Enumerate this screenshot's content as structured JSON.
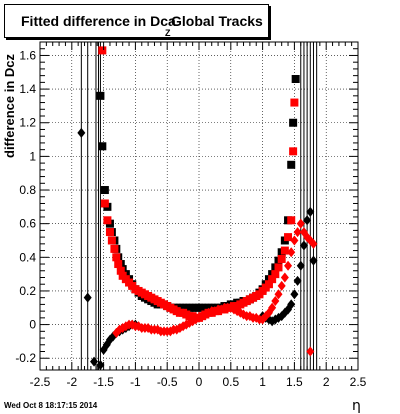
{
  "title": {
    "main": "Fitted difference in Dca",
    "subscript": "Z",
    "suffix": "Global Tracks"
  },
  "timestamp": "Wed Oct  8 18:17:15 2014",
  "chart_data": {
    "type": "scatter",
    "xlabel": "η",
    "ylabel": "difference in Dcz",
    "xlim": [
      -2.5,
      2.5
    ],
    "ylim": [
      -0.27,
      1.68
    ],
    "x_ticks": [
      -2.5,
      -2,
      -1.5,
      -1,
      -0.5,
      0,
      0.5,
      1,
      1.5,
      2,
      2.5
    ],
    "y_ticks": [
      -0.2,
      0,
      0.2,
      0.4,
      0.6,
      0.8,
      1,
      1.2,
      1.4,
      1.6
    ],
    "tick_labels_x": [
      "-2.5",
      "-2",
      "-1.5",
      "-1",
      "-0.5",
      "0",
      "0.5",
      "1",
      "1.5",
      "2",
      "2.5"
    ],
    "tick_labels_y": [
      "-0.2",
      "0",
      "0.2",
      "0.4",
      "0.6",
      "0.8",
      "1",
      "1.2",
      "1.4",
      "1.6"
    ],
    "grid": true,
    "series": [
      {
        "color": "#000000",
        "marker": "square",
        "points": [
          [
            -1.55,
            1.36
          ],
          [
            -1.52,
            1.06
          ],
          [
            -1.48,
            0.8
          ],
          [
            -1.44,
            0.7
          ],
          [
            -1.4,
            0.6
          ],
          [
            -1.37,
            0.55
          ],
          [
            -1.33,
            0.5
          ],
          [
            -1.3,
            0.45
          ],
          [
            -1.27,
            0.4
          ],
          [
            -1.23,
            0.36
          ],
          [
            -1.2,
            0.33
          ],
          [
            -1.15,
            0.3
          ],
          [
            -1.1,
            0.27
          ],
          [
            -1.05,
            0.24
          ],
          [
            -1.0,
            0.21
          ],
          [
            -0.95,
            0.19
          ],
          [
            -0.9,
            0.17
          ],
          [
            -0.85,
            0.16
          ],
          [
            -0.8,
            0.15
          ],
          [
            -0.75,
            0.14
          ],
          [
            -0.7,
            0.13
          ],
          [
            -0.65,
            0.12
          ],
          [
            -0.6,
            0.12
          ],
          [
            -0.55,
            0.12
          ],
          [
            -0.5,
            0.11
          ],
          [
            -0.45,
            0.1
          ],
          [
            -0.4,
            0.1
          ],
          [
            -0.35,
            0.1
          ],
          [
            -0.3,
            0.1
          ],
          [
            -0.25,
            0.1
          ],
          [
            -0.2,
            0.1
          ],
          [
            -0.15,
            0.1
          ],
          [
            -0.1,
            0.1
          ],
          [
            -0.05,
            0.1
          ],
          [
            0.0,
            0.1
          ],
          [
            0.05,
            0.1
          ],
          [
            0.1,
            0.1
          ],
          [
            0.15,
            0.1
          ],
          [
            0.2,
            0.1
          ],
          [
            0.25,
            0.1
          ],
          [
            0.3,
            0.1
          ],
          [
            0.35,
            0.1
          ],
          [
            0.4,
            0.11
          ],
          [
            0.45,
            0.11
          ],
          [
            0.5,
            0.12
          ],
          [
            0.55,
            0.12
          ],
          [
            0.6,
            0.13
          ],
          [
            0.65,
            0.13
          ],
          [
            0.7,
            0.14
          ],
          [
            0.75,
            0.14
          ],
          [
            0.8,
            0.15
          ],
          [
            0.85,
            0.16
          ],
          [
            0.9,
            0.17
          ],
          [
            0.95,
            0.19
          ],
          [
            1.0,
            0.21
          ],
          [
            1.05,
            0.24
          ],
          [
            1.1,
            0.27
          ],
          [
            1.15,
            0.3
          ],
          [
            1.2,
            0.34
          ],
          [
            1.25,
            0.38
          ],
          [
            1.3,
            0.43
          ],
          [
            1.35,
            0.5
          ],
          [
            1.4,
            0.62
          ],
          [
            1.45,
            0.95
          ],
          [
            1.48,
            1.2
          ],
          [
            1.52,
            1.46
          ]
        ]
      },
      {
        "color": "#000000",
        "marker": "diamond",
        "points": [
          [
            -1.85,
            1.14
          ],
          [
            -1.75,
            0.16
          ],
          [
            -1.65,
            -0.22
          ],
          [
            -1.55,
            -0.24
          ],
          [
            -1.5,
            -0.15
          ],
          [
            -1.45,
            -0.12
          ],
          [
            -1.4,
            -0.09
          ],
          [
            -1.35,
            -0.07
          ],
          [
            -1.3,
            -0.05
          ],
          [
            -1.25,
            -0.04
          ],
          [
            -1.2,
            -0.03
          ],
          [
            -1.15,
            -0.02
          ],
          [
            -1.1,
            -0.01
          ],
          [
            -1.05,
            0.0
          ],
          [
            -1.0,
            0.0
          ],
          [
            1.0,
            0.05
          ],
          [
            1.05,
            0.04
          ],
          [
            1.1,
            0.03
          ],
          [
            1.15,
            0.02
          ],
          [
            1.2,
            0.03
          ],
          [
            1.25,
            0.04
          ],
          [
            1.3,
            0.05
          ],
          [
            1.35,
            0.07
          ],
          [
            1.4,
            0.09
          ],
          [
            1.45,
            0.12
          ],
          [
            1.5,
            0.18
          ],
          [
            1.55,
            0.26
          ],
          [
            1.6,
            0.35
          ],
          [
            1.65,
            0.47
          ],
          [
            1.7,
            0.62
          ],
          [
            1.75,
            0.67
          ],
          [
            1.8,
            0.38
          ]
        ]
      },
      {
        "color": "#ff0000",
        "marker": "square",
        "points": [
          [
            -1.52,
            1.63
          ],
          [
            -1.48,
            0.72
          ],
          [
            -1.44,
            0.62
          ],
          [
            -1.4,
            0.55
          ],
          [
            -1.37,
            0.5
          ],
          [
            -1.33,
            0.45
          ],
          [
            -1.3,
            0.4
          ],
          [
            -1.27,
            0.36
          ],
          [
            -1.23,
            0.32
          ],
          [
            -1.2,
            0.29
          ],
          [
            -1.15,
            0.27
          ],
          [
            -1.1,
            0.25
          ],
          [
            -1.05,
            0.23
          ],
          [
            -1.0,
            0.21
          ],
          [
            -0.95,
            0.2
          ],
          [
            -0.9,
            0.19
          ],
          [
            -0.85,
            0.18
          ],
          [
            -0.8,
            0.17
          ],
          [
            -0.75,
            0.16
          ],
          [
            -0.7,
            0.15
          ],
          [
            -0.65,
            0.14
          ],
          [
            -0.6,
            0.13
          ],
          [
            -0.55,
            0.12
          ],
          [
            -0.5,
            0.11
          ],
          [
            -0.45,
            0.1
          ],
          [
            -0.4,
            0.09
          ],
          [
            -0.35,
            0.08
          ],
          [
            -0.3,
            0.07
          ],
          [
            -0.25,
            0.07
          ],
          [
            -0.2,
            0.06
          ],
          [
            -0.15,
            0.05
          ],
          [
            -0.1,
            0.05
          ],
          [
            -0.05,
            0.04
          ],
          [
            0.0,
            0.04
          ],
          [
            0.05,
            0.05
          ],
          [
            0.1,
            0.06
          ],
          [
            0.15,
            0.07
          ],
          [
            0.2,
            0.07
          ],
          [
            0.25,
            0.08
          ],
          [
            0.3,
            0.08
          ],
          [
            0.35,
            0.09
          ],
          [
            0.4,
            0.09
          ],
          [
            0.45,
            0.1
          ],
          [
            0.5,
            0.1
          ],
          [
            0.55,
            0.11
          ],
          [
            0.6,
            0.11
          ],
          [
            0.65,
            0.12
          ],
          [
            0.7,
            0.13
          ],
          [
            0.75,
            0.14
          ],
          [
            0.8,
            0.15
          ],
          [
            0.85,
            0.16
          ],
          [
            0.9,
            0.17
          ],
          [
            0.95,
            0.18
          ],
          [
            1.0,
            0.2
          ],
          [
            1.05,
            0.22
          ],
          [
            1.1,
            0.24
          ],
          [
            1.15,
            0.27
          ],
          [
            1.2,
            0.3
          ],
          [
            1.25,
            0.34
          ],
          [
            1.3,
            0.39
          ],
          [
            1.35,
            0.44
          ],
          [
            1.4,
            0.52
          ],
          [
            1.45,
            0.62
          ],
          [
            1.48,
            1.03
          ],
          [
            1.5,
            1.32
          ]
        ]
      },
      {
        "color": "#ff0000",
        "marker": "diamond",
        "points": [
          [
            -1.3,
            -0.05
          ],
          [
            -1.25,
            -0.03
          ],
          [
            -1.2,
            -0.02
          ],
          [
            -1.15,
            -0.01
          ],
          [
            -1.1,
            0.0
          ],
          [
            -1.05,
            0.0
          ],
          [
            -1.0,
            -0.01
          ],
          [
            -0.95,
            -0.01
          ],
          [
            -0.9,
            -0.02
          ],
          [
            -0.85,
            -0.02
          ],
          [
            -0.8,
            -0.02
          ],
          [
            -0.75,
            -0.03
          ],
          [
            -0.7,
            -0.03
          ],
          [
            -0.65,
            -0.03
          ],
          [
            -0.6,
            -0.04
          ],
          [
            -0.55,
            -0.04
          ],
          [
            -0.5,
            -0.04
          ],
          [
            -0.45,
            -0.04
          ],
          [
            -0.4,
            -0.03
          ],
          [
            -0.35,
            -0.03
          ],
          [
            -0.3,
            -0.02
          ],
          [
            -0.25,
            -0.01
          ],
          [
            -0.2,
            0.0
          ],
          [
            -0.15,
            0.01
          ],
          [
            -0.1,
            0.02
          ],
          [
            -0.05,
            0.03
          ],
          [
            0.0,
            0.04
          ],
          [
            0.05,
            0.05
          ],
          [
            0.1,
            0.06
          ],
          [
            0.15,
            0.07
          ],
          [
            0.2,
            0.08
          ],
          [
            0.25,
            0.08
          ],
          [
            0.3,
            0.09
          ],
          [
            0.35,
            0.09
          ],
          [
            0.4,
            0.1
          ],
          [
            0.45,
            0.1
          ],
          [
            0.5,
            0.1
          ],
          [
            0.55,
            0.09
          ],
          [
            0.6,
            0.08
          ],
          [
            0.65,
            0.07
          ],
          [
            0.7,
            0.06
          ],
          [
            0.75,
            0.05
          ],
          [
            0.8,
            0.05
          ],
          [
            0.85,
            0.04
          ],
          [
            0.9,
            0.04
          ],
          [
            0.95,
            0.03
          ],
          [
            1.0,
            0.03
          ],
          [
            1.05,
            0.05
          ],
          [
            1.1,
            0.07
          ],
          [
            1.15,
            0.1
          ],
          [
            1.2,
            0.14
          ],
          [
            1.25,
            0.18
          ],
          [
            1.3,
            0.23
          ],
          [
            1.35,
            0.28
          ],
          [
            1.4,
            0.35
          ],
          [
            1.45,
            0.43
          ],
          [
            1.5,
            0.5
          ],
          [
            1.55,
            0.55
          ],
          [
            1.6,
            0.6
          ],
          [
            1.65,
            0.55
          ],
          [
            1.7,
            0.52
          ],
          [
            1.75,
            0.5
          ],
          [
            1.8,
            0.48
          ],
          [
            1.75,
            -0.16
          ]
        ]
      }
    ],
    "error_bars": [
      {
        "x": -1.85,
        "y_low": -0.27,
        "y_high": 1.68,
        "color": "#000000"
      },
      {
        "x": -1.75,
        "y_low": -0.27,
        "y_high": 1.68,
        "color": "#000000"
      },
      {
        "x": -1.62,
        "y_low": -0.27,
        "y_high": 1.68,
        "color": "#000000"
      },
      {
        "x": -1.58,
        "y_low": -0.27,
        "y_high": 1.68,
        "color": "#000000"
      },
      {
        "x": -1.55,
        "y_low": -0.27,
        "y_high": 1.68,
        "color": "#000000"
      },
      {
        "x": 1.6,
        "y_low": -0.27,
        "y_high": 1.68,
        "color": "#000000"
      },
      {
        "x": 1.65,
        "y_low": -0.27,
        "y_high": 1.68,
        "color": "#000000"
      },
      {
        "x": 1.7,
        "y_low": -0.27,
        "y_high": 1.68,
        "color": "#000000"
      },
      {
        "x": 1.75,
        "y_low": -0.27,
        "y_high": 1.68,
        "color": "#000000"
      },
      {
        "x": 1.8,
        "y_low": -0.27,
        "y_high": 1.68,
        "color": "#000000"
      },
      {
        "x": 1.85,
        "y_low": -0.27,
        "y_high": 1.68,
        "color": "#000000"
      }
    ]
  }
}
